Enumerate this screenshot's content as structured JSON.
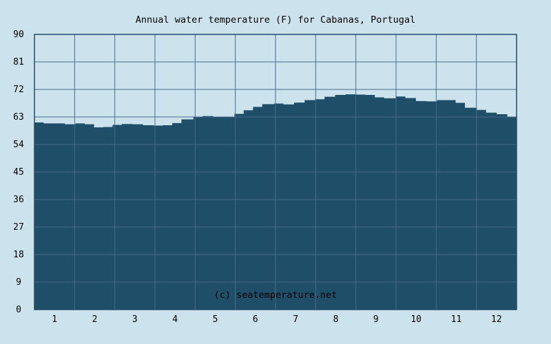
{
  "chart_data": {
    "type": "area",
    "title": "Annual water temperature (F) for Cabanas, Portugal",
    "credit": "(c) seatemperature.net",
    "xlabel": "",
    "ylabel": "",
    "ylim": [
      0,
      90
    ],
    "y_ticks": [
      "0",
      "9",
      "18",
      "27",
      "36",
      "45",
      "54",
      "63",
      "72",
      "81",
      "90"
    ],
    "x_ticks": [
      "1",
      "2",
      "3",
      "4",
      "5",
      "6",
      "7",
      "8",
      "9",
      "10",
      "11",
      "12"
    ],
    "grid": true,
    "colors": {
      "background": "#cce3ee",
      "fill": "#1f4e68",
      "grid": "#49698a",
      "axis": "#234a66"
    },
    "series": [
      {
        "x": [
          "Jan 1",
          "Jan 8",
          "Jan 16",
          "Jan 24",
          "Feb 1",
          "Feb 8",
          "Feb 15",
          "Feb 22",
          "Mar 1",
          "Mar 8",
          "Mar 16",
          "Mar 24",
          "Apr 1",
          "Apr 8",
          "Apr 15",
          "Apr 22",
          "May 1",
          "May 8",
          "May 16",
          "May 24",
          "Jun 1",
          "Jun 8",
          "Jun 15",
          "Jun 22",
          "Jul 1",
          "Jul 8",
          "Jul 16",
          "Jul 24",
          "Aug 1",
          "Aug 8",
          "Aug 16",
          "Aug 24",
          "Sep 1",
          "Sep 8",
          "Sep 15",
          "Sep 22",
          "Oct 1",
          "Oct 8",
          "Oct 16",
          "Oct 24",
          "Nov 1",
          "Nov 8",
          "Nov 15",
          "Nov 22",
          "Dec 1",
          "Dec 8",
          "Dec 16",
          "Dec 24",
          "Dec 31"
        ],
        "values": [
          61.2,
          60.9,
          60.9,
          60.6,
          60.9,
          60.6,
          59.6,
          59.7,
          60.4,
          60.7,
          60.6,
          60.3,
          60.2,
          60.3,
          61.0,
          62.2,
          63.1,
          63.3,
          62.9,
          63.0,
          64.0,
          65.2,
          66.3,
          67.2,
          67.4,
          67.1,
          67.7,
          68.5,
          68.8,
          69.6,
          70.2,
          70.4,
          70.3,
          70.2,
          69.4,
          69.1,
          69.7,
          69.2,
          68.2,
          68.1,
          68.5,
          68.5,
          67.6,
          66.0,
          65.3,
          64.4,
          63.9,
          63.1,
          62.7
        ]
      }
    ]
  }
}
